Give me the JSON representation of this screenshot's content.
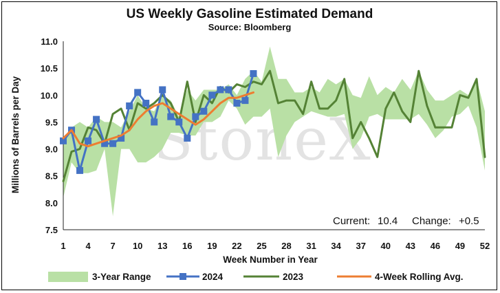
{
  "chart_data": {
    "type": "line",
    "title": "US Weekly Gasoline Estimated Demand",
    "subtitle": "Source: Bloomberg",
    "xlabel": "Week Number in Year",
    "ylabel": "Millions of Barrels per Day",
    "xlim": [
      1,
      52
    ],
    "ylim": [
      7.5,
      11.0
    ],
    "y_ticks": [
      7.5,
      8.0,
      8.5,
      9.0,
      9.5,
      10.0,
      10.5,
      11.0
    ],
    "x_ticks": [
      1,
      4,
      7,
      10,
      13,
      16,
      19,
      22,
      25,
      28,
      31,
      34,
      37,
      40,
      43,
      46,
      49,
      52
    ],
    "watermark": "StoneX",
    "annotation": {
      "current_label": "Current:",
      "current_value": "10.4",
      "change_label": "Change:",
      "change_value": "+0.5"
    },
    "colors": {
      "range": "#b9e0a5",
      "s2024": "#4472c4",
      "s2023": "#548235",
      "rolling": "#ed7d31"
    },
    "legend_position": "bottom",
    "range": {
      "name": "3-Year Range",
      "x": [
        1,
        2,
        3,
        4,
        5,
        6,
        7,
        8,
        9,
        10,
        11,
        12,
        13,
        14,
        15,
        16,
        17,
        18,
        19,
        20,
        21,
        22,
        23,
        24,
        25,
        26,
        27,
        28,
        29,
        30,
        31,
        32,
        33,
        34,
        35,
        36,
        37,
        38,
        39,
        40,
        41,
        42,
        43,
        44,
        45,
        46,
        47,
        48,
        49,
        50,
        51,
        52
      ],
      "low": [
        8.1,
        8.75,
        8.55,
        8.55,
        8.6,
        9.0,
        7.75,
        9.0,
        9.0,
        8.75,
        8.75,
        8.85,
        9.0,
        9.3,
        9.3,
        9.25,
        9.25,
        9.5,
        9.5,
        9.6,
        9.9,
        9.75,
        9.45,
        9.6,
        9.6,
        9.75,
        8.85,
        9.25,
        9.5,
        9.6,
        9.7,
        9.65,
        9.6,
        9.6,
        9.65,
        9.0,
        9.2,
        9.6,
        9.65,
        9.55,
        9.55,
        9.55,
        9.55,
        9.65,
        9.45,
        9.2,
        9.35,
        9.6,
        9.65,
        9.8,
        9.4,
        8.6
      ],
      "high": [
        9.2,
        9.4,
        9.5,
        9.4,
        9.6,
        9.5,
        9.5,
        9.4,
        9.7,
        10.0,
        9.75,
        9.7,
        10.0,
        9.9,
        9.6,
        10.1,
        9.9,
        10.1,
        10.1,
        10.1,
        10.2,
        10.0,
        10.3,
        10.45,
        10.25,
        10.9,
        10.3,
        10.3,
        10.05,
        10.05,
        10.15,
        10.05,
        10.3,
        10.2,
        10.3,
        10.0,
        9.95,
        10.35,
        10.0,
        10.15,
        10.05,
        10.3,
        10.1,
        10.45,
        10.1,
        9.9,
        9.9,
        10.0,
        10.1,
        10.0,
        10.3,
        9.7
      ]
    },
    "series": [
      {
        "name": "2024",
        "x": [
          1,
          2,
          3,
          4,
          5,
          6,
          7,
          8,
          9,
          10,
          11,
          12,
          13,
          14,
          15,
          16,
          17,
          18,
          19,
          20,
          21,
          22,
          23,
          24
        ],
        "values": [
          9.15,
          9.35,
          8.6,
          9.15,
          9.55,
          9.1,
          9.1,
          9.2,
          9.8,
          10.05,
          9.85,
          9.5,
          10.1,
          9.6,
          9.5,
          9.2,
          9.6,
          9.7,
          10.0,
          10.1,
          10.1,
          9.85,
          9.9,
          10.4
        ]
      },
      {
        "name": "2023",
        "x": [
          1,
          2,
          3,
          4,
          5,
          6,
          7,
          8,
          9,
          10,
          11,
          12,
          13,
          14,
          15,
          16,
          17,
          18,
          19,
          20,
          21,
          22,
          23,
          24,
          25,
          26,
          27,
          28,
          29,
          30,
          31,
          32,
          33,
          34,
          35,
          36,
          37,
          38,
          39,
          40,
          41,
          42,
          43,
          44,
          45,
          46,
          47,
          48,
          49,
          50,
          51,
          52
        ],
        "values": [
          8.4,
          8.95,
          9.0,
          9.4,
          9.35,
          9.1,
          9.65,
          9.75,
          9.35,
          9.85,
          9.75,
          9.85,
          10.0,
          9.85,
          9.5,
          10.25,
          9.5,
          10.0,
          9.85,
          10.15,
          10.05,
          10.2,
          10.15,
          10.25,
          10.2,
          10.45,
          9.85,
          9.9,
          9.9,
          9.65,
          10.25,
          9.75,
          9.75,
          9.9,
          10.3,
          9.2,
          9.5,
          9.2,
          8.85,
          9.75,
          10.05,
          9.7,
          9.5,
          10.45,
          9.8,
          9.4,
          9.4,
          9.4,
          10.0,
          9.95,
          10.3,
          8.85
        ]
      },
      {
        "name": "4-Week Rolling Avg.",
        "x": [
          1,
          2,
          3,
          4,
          5,
          6,
          7,
          8,
          9,
          10,
          11,
          12,
          13,
          14,
          15,
          16,
          17,
          18,
          19,
          20,
          21,
          22,
          23,
          24
        ],
        "values": [
          9.2,
          9.35,
          9.1,
          9.05,
          9.1,
          9.15,
          9.2,
          9.25,
          9.35,
          9.55,
          9.7,
          9.8,
          9.85,
          9.75,
          9.65,
          9.55,
          9.45,
          9.55,
          9.7,
          9.85,
          9.95,
          9.95,
          10.0,
          10.05
        ]
      }
    ]
  }
}
